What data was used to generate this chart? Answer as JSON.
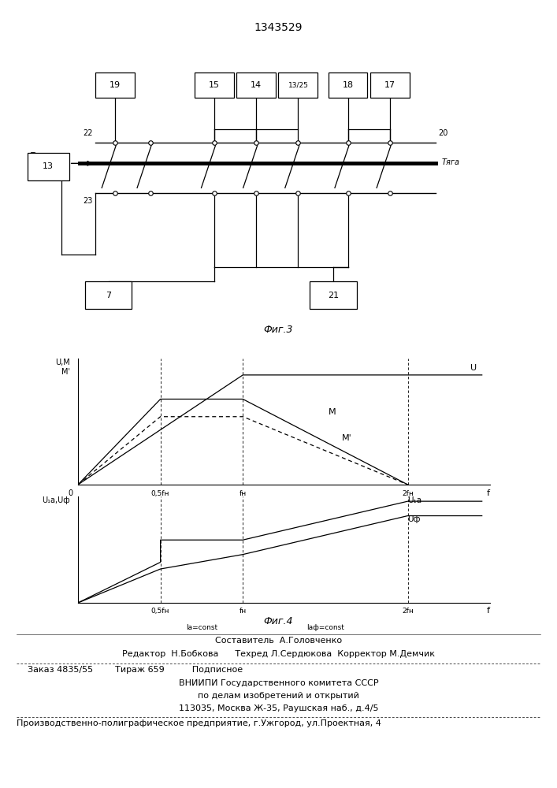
{
  "title": "1343529",
  "fig3_label": "Фиг.3",
  "fig4_label": "Фиг.4",
  "footer_lines": [
    "Составитель  А.Головченко",
    "Редактор  Н.Бобкова      Техред Л.Сердюкова  Корректор М.Демчик",
    "Заказ 4835/55        Тираж 659          Подписное",
    "ВНИИПИ Государственного комитета СССР",
    "по делам изобретений и открытий",
    "113035, Москва Ж-35, Раушская наб., д.4/5",
    "Производственно-полиграфическое предприятие, г.Ужгород, ул.Проектная, 4"
  ],
  "bg_color": "#ffffff",
  "line_color": "#000000"
}
